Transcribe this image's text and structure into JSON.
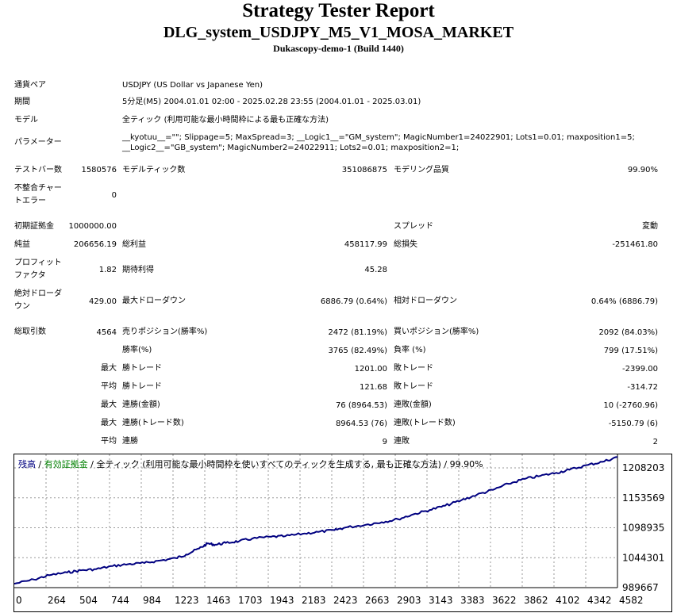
{
  "header": {
    "title": "Strategy Tester Report",
    "expert": "DLG_system_USDJPY_M5_V1_MOSA_MARKET",
    "server": "Dukascopy-demo-1 (Build 1440)"
  },
  "settings": {
    "symbol_label": "通貨ペア",
    "symbol_value": "USDJPY (US Dollar vs Japanese Yen)",
    "period_label": "期間",
    "period_value": "5分足(M5) 2004.01.01 02:00 - 2025.02.28 23:55 (2004.01.01 - 2025.03.01)",
    "model_label": "モデル",
    "model_value": "全ティック (利用可能な最小時間枠による最も正確な方法)",
    "params_label": "パラメーター",
    "params_line1": "__kyotuu__=\"\"; Slippage=5; MaxSpread=3; __Logic1__=\"GM_system\"; MagicNumber1=24022901; Lots1=0.01; maxposition1=5;",
    "params_line2": "__Logic2__=\"GB_system\"; MagicNumber2=24022911; Lots2=0.01; maxposition2=1;"
  },
  "quality": {
    "bars_label": "テストバー数",
    "bars_value": "1580576",
    "ticks_label": "モデルティック数",
    "ticks_value": "351086875",
    "quality_label": "モデリング品質",
    "quality_value": "99.90%",
    "mismatch_label_1": "不整合チャー",
    "mismatch_label_2": "トエラー",
    "mismatch_value": "0"
  },
  "stats": {
    "deposit_label": "初期証拠金",
    "deposit_value": "1000000.00",
    "spread_label": "スプレッド",
    "spread_value": "変動",
    "net_label": "純益",
    "net_value": "206656.19",
    "gross_profit_label": "総利益",
    "gross_profit_value": "458117.99",
    "gross_loss_label": "総損失",
    "gross_loss_value": "-251461.80",
    "pf_label_1": "プロフィット",
    "pf_label_2": "ファクタ",
    "pf_value": "1.82",
    "expected_label": "期待利得",
    "expected_value": "45.28",
    "abs_dd_label_1": "絶対ドローダ",
    "abs_dd_label_2": "ウン",
    "abs_dd_value": "429.00",
    "max_dd_label": "最大ドローダウン",
    "max_dd_value": "6886.79 (0.64%)",
    "rel_dd_label": "相対ドローダウン",
    "rel_dd_value": "0.64% (6886.79)",
    "trades_label": "総取引数",
    "trades_value": "4564",
    "short_label": "売りポジション(勝率%)",
    "short_value": "2472 (81.19%)",
    "long_label": "買いポジション(勝率%)",
    "long_value": "2092 (84.03%)",
    "win_rate_label": "勝率(%)",
    "win_rate_value": "3765 (82.49%)",
    "loss_rate_label": "負率 (%)",
    "loss_rate_value": "799 (17.51%)",
    "largest_prefix": "最大",
    "largest_win_label": "勝トレード",
    "largest_win_value": "1201.00",
    "largest_loss_label": "敗トレード",
    "largest_loss_value": "-2399.00",
    "avg_prefix": "平均",
    "avg_win_label": "勝トレード",
    "avg_win_value": "121.68",
    "avg_loss_label": "敗トレード",
    "avg_loss_value": "-314.72",
    "max_cons_prefix": "最大",
    "max_cons_wins_label": "連勝(金額)",
    "max_cons_wins_value": "76 (8964.53)",
    "max_cons_losses_label": "連敗(金額)",
    "max_cons_losses_value": "10 (-2760.96)",
    "max_consp_prefix": "最大",
    "max_consp_wins_label": "連勝(トレード数)",
    "max_consp_wins_value": "8964.53 (76)",
    "max_consp_losses_label": "連敗(トレード数)",
    "max_consp_losses_value": "-5150.79 (6)",
    "avg_cons_prefix": "平均",
    "avg_cons_wins_label": "連勝",
    "avg_cons_wins_value": "9",
    "avg_cons_losses_label": "連敗",
    "avg_cons_losses_value": "2"
  },
  "chart_data": {
    "type": "line",
    "legend": {
      "balance": "残高",
      "sep1": " / ",
      "equity": "有効証拠金",
      "sep2": " / ",
      "rest": "全ティック (利用可能な最小時間枠を使いすべてのティックを生成する, 最も正確な方法) / 99.90%"
    },
    "x_ticks": [
      "0",
      "264",
      "504",
      "744",
      "984",
      "1223",
      "1463",
      "1703",
      "1943",
      "2183",
      "2423",
      "2663",
      "2903",
      "3143",
      "3383",
      "3622",
      "3862",
      "4102",
      "4342",
      "4582"
    ],
    "y_ticks": [
      "1208203",
      "1153569",
      "1098935",
      "1044301",
      "989667"
    ],
    "xlim": [
      0,
      4564
    ],
    "ylim": [
      989667,
      1208203
    ],
    "series": [
      {
        "x": [
          0,
          150,
          264,
          400,
          504,
          620,
          744,
          860,
          984,
          1100,
          1223,
          1300,
          1400,
          1463,
          1520,
          1600,
          1703,
          1800,
          1943,
          2050,
          2183,
          2300,
          2423,
          2500,
          2663,
          2780,
          2903,
          3020,
          3143,
          3260,
          3383,
          3500,
          3622,
          3740,
          3862,
          3980,
          4102,
          4200,
          4342,
          4450,
          4564
        ],
        "y": [
          996000,
          1003000,
          1010000,
          1014500,
          1018000,
          1020000,
          1025000,
          1028000,
          1030000,
          1034000,
          1038000,
          1044000,
          1054000,
          1062000,
          1060000,
          1063000,
          1066000,
          1070000,
          1073000,
          1074000,
          1078000,
          1081000,
          1084000,
          1088000,
          1093000,
          1097000,
          1102000,
          1110000,
          1117000,
          1124000,
          1133000,
          1142000,
          1150000,
          1160000,
          1168000,
          1173000,
          1178000,
          1183000,
          1191000,
          1196000,
          1204000
        ]
      }
    ],
    "colors": {
      "balance": "#000080",
      "equity": "#008000",
      "axis": "#000000",
      "grid": "#9a9a9a"
    }
  }
}
